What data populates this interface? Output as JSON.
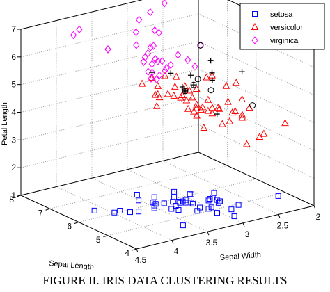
{
  "caption": "FIGURE II.    IRIS DATA CLUSTERING RESULTS",
  "chart_data": {
    "type": "scatter3d",
    "xlabel": "Sepal Width",
    "ylabel": "Sepal Length",
    "zlabel": "Petal Length",
    "x_ticks": [
      "2",
      "2.5",
      "3",
      "3.5",
      "4",
      "4.5"
    ],
    "y_ticks": [
      "4",
      "5",
      "6",
      "7",
      "8"
    ],
    "z_ticks": [
      "1",
      "2",
      "3",
      "4",
      "5",
      "6",
      "7"
    ],
    "xlim": [
      2,
      4.5
    ],
    "ylim": [
      4,
      8
    ],
    "zlim": [
      1,
      7
    ],
    "grid": true,
    "legend_position": "top-right",
    "series": [
      {
        "name": "setosa",
        "marker": "square",
        "color": "#0000ff",
        "points": [
          [
            3.5,
            5.1,
            1.4
          ],
          [
            3.0,
            4.9,
            1.4
          ],
          [
            3.2,
            4.7,
            1.3
          ],
          [
            3.1,
            4.6,
            1.5
          ],
          [
            3.6,
            5.0,
            1.4
          ],
          [
            3.9,
            5.4,
            1.7
          ],
          [
            3.4,
            4.6,
            1.4
          ],
          [
            3.4,
            5.0,
            1.5
          ],
          [
            2.9,
            4.4,
            1.4
          ],
          [
            3.1,
            4.9,
            1.5
          ],
          [
            3.7,
            5.4,
            1.5
          ],
          [
            3.4,
            4.8,
            1.6
          ],
          [
            3.0,
            4.8,
            1.4
          ],
          [
            3.0,
            4.3,
            1.1
          ],
          [
            4.0,
            5.8,
            1.2
          ],
          [
            4.4,
            5.7,
            1.5
          ],
          [
            3.9,
            5.4,
            1.3
          ],
          [
            3.5,
            5.1,
            1.4
          ],
          [
            3.8,
            5.7,
            1.7
          ],
          [
            3.8,
            5.1,
            1.5
          ],
          [
            3.4,
            5.4,
            1.7
          ],
          [
            3.7,
            5.1,
            1.5
          ],
          [
            3.6,
            4.6,
            1.0
          ],
          [
            3.3,
            5.1,
            1.7
          ],
          [
            3.4,
            4.8,
            1.9
          ],
          [
            3.0,
            5.0,
            1.6
          ],
          [
            3.4,
            5.0,
            1.6
          ],
          [
            3.5,
            5.2,
            1.5
          ],
          [
            3.4,
            5.2,
            1.4
          ],
          [
            3.2,
            4.7,
            1.6
          ],
          [
            3.1,
            4.8,
            1.6
          ],
          [
            3.4,
            5.4,
            1.5
          ],
          [
            4.1,
            5.2,
            1.5
          ],
          [
            4.2,
            5.5,
            1.4
          ],
          [
            3.2,
            5.0,
            1.2
          ],
          [
            3.5,
            5.5,
            1.3
          ],
          [
            3.0,
            4.4,
            1.3
          ],
          [
            3.4,
            5.1,
            1.5
          ],
          [
            3.5,
            5.0,
            1.3
          ],
          [
            2.3,
            4.5,
            1.3
          ],
          [
            3.2,
            4.4,
            1.3
          ],
          [
            3.5,
            5.0,
            1.6
          ],
          [
            3.8,
            5.1,
            1.9
          ],
          [
            3.0,
            4.8,
            1.4
          ],
          [
            3.8,
            5.1,
            1.6
          ],
          [
            3.2,
            4.6,
            1.4
          ],
          [
            3.7,
            5.3,
            1.5
          ],
          [
            3.3,
            5.0,
            1.4
          ]
        ]
      },
      {
        "name": "versicolor",
        "marker": "triangle",
        "color": "#ff0000",
        "points": [
          [
            3.2,
            7.0,
            4.7
          ],
          [
            3.2,
            6.4,
            4.5
          ],
          [
            3.1,
            6.9,
            4.9
          ],
          [
            2.3,
            5.5,
            4.0
          ],
          [
            2.8,
            6.5,
            4.6
          ],
          [
            2.8,
            5.7,
            4.5
          ],
          [
            3.3,
            6.3,
            4.7
          ],
          [
            2.4,
            4.9,
            3.3
          ],
          [
            2.9,
            6.6,
            4.6
          ],
          [
            2.7,
            5.2,
            3.9
          ],
          [
            2.0,
            5.0,
            3.5
          ],
          [
            3.0,
            5.9,
            4.2
          ],
          [
            2.2,
            6.0,
            4.0
          ],
          [
            2.9,
            6.1,
            4.7
          ],
          [
            2.9,
            5.6,
            3.6
          ],
          [
            3.1,
            6.7,
            4.4
          ],
          [
            3.0,
            5.6,
            4.5
          ],
          [
            2.7,
            5.8,
            4.1
          ],
          [
            2.2,
            6.2,
            4.5
          ],
          [
            2.5,
            5.6,
            3.9
          ],
          [
            3.2,
            5.9,
            4.8
          ],
          [
            2.8,
            6.1,
            4.0
          ],
          [
            2.5,
            6.3,
            4.9
          ],
          [
            2.8,
            6.1,
            4.7
          ],
          [
            2.9,
            6.4,
            4.3
          ],
          [
            3.0,
            6.6,
            4.4
          ],
          [
            2.8,
            6.8,
            4.8
          ],
          [
            3.0,
            6.7,
            5.0
          ],
          [
            2.9,
            6.0,
            4.5
          ],
          [
            2.6,
            5.7,
            3.5
          ],
          [
            2.4,
            5.5,
            3.8
          ],
          [
            2.4,
            5.5,
            3.7
          ],
          [
            2.7,
            5.8,
            3.9
          ],
          [
            2.7,
            6.0,
            5.1
          ],
          [
            3.0,
            5.4,
            4.5
          ],
          [
            3.4,
            6.0,
            4.5
          ],
          [
            3.1,
            6.7,
            4.7
          ],
          [
            2.3,
            6.3,
            4.4
          ],
          [
            3.0,
            5.6,
            4.1
          ],
          [
            2.5,
            5.5,
            4.0
          ],
          [
            2.6,
            5.5,
            4.4
          ],
          [
            3.0,
            6.1,
            4.6
          ],
          [
            2.6,
            5.8,
            4.0
          ],
          [
            2.3,
            5.0,
            3.3
          ],
          [
            2.7,
            5.6,
            4.2
          ],
          [
            3.0,
            5.7,
            4.2
          ],
          [
            2.9,
            5.7,
            4.2
          ],
          [
            2.9,
            6.2,
            4.3
          ],
          [
            2.5,
            5.1,
            3.0
          ],
          [
            2.8,
            5.7,
            4.1
          ]
        ]
      },
      {
        "name": "virginica",
        "marker": "diamond",
        "color": "#ff00ff",
        "points": [
          [
            3.3,
            6.3,
            6.0
          ],
          [
            3.0,
            7.1,
            5.9
          ],
          [
            2.9,
            6.5,
            5.8
          ],
          [
            3.0,
            7.6,
            6.6
          ],
          [
            2.9,
            7.3,
            6.3
          ],
          [
            3.6,
            7.2,
            6.1
          ],
          [
            3.2,
            6.5,
            5.1
          ],
          [
            2.7,
            6.4,
            5.3
          ],
          [
            3.0,
            6.8,
            5.5
          ],
          [
            3.2,
            6.4,
            5.3
          ],
          [
            3.0,
            6.5,
            5.5
          ],
          [
            3.8,
            7.7,
            6.7
          ],
          [
            2.6,
            7.7,
            6.9
          ],
          [
            3.2,
            6.9,
            5.7
          ],
          [
            2.8,
            7.7,
            6.7
          ],
          [
            3.3,
            6.7,
            5.7
          ],
          [
            3.2,
            7.2,
            6.0
          ],
          [
            3.0,
            7.2,
            5.8
          ],
          [
            2.8,
            7.4,
            6.1
          ],
          [
            3.8,
            7.9,
            6.4
          ],
          [
            2.8,
            6.4,
            5.6
          ],
          [
            3.0,
            7.7,
            6.1
          ],
          [
            3.4,
            6.3,
            5.6
          ],
          [
            3.1,
            6.4,
            5.5
          ],
          [
            3.1,
            6.9,
            5.4
          ],
          [
            3.1,
            6.7,
            5.6
          ],
          [
            3.1,
            6.9,
            5.1
          ],
          [
            3.2,
            6.8,
            5.9
          ],
          [
            3.3,
            6.7,
            5.7
          ],
          [
            3.0,
            6.7,
            5.2
          ],
          [
            3.4,
            6.2,
            5.4
          ],
          [
            2.9,
            7.3,
            6.3
          ],
          [
            2.5,
            6.7,
            5.8
          ],
          [
            3.6,
            7.2,
            6.1
          ],
          [
            3.3,
            6.3,
            6.0
          ]
        ]
      }
    ],
    "unlabeled_markers": [
      {
        "marker": "plus",
        "color": "#000000",
        "points": [
          [
            2.7,
            5.8,
            5.1
          ],
          [
            3.0,
            6.5,
            5.2
          ],
          [
            2.5,
            6.3,
            5.0
          ],
          [
            3.0,
            6.0,
            4.8
          ],
          [
            2.8,
            6.2,
            4.8
          ],
          [
            3.0,
            6.1,
            4.9
          ],
          [
            2.8,
            6.3,
            5.1
          ],
          [
            2.6,
            6.1,
            5.6
          ],
          [
            3.0,
            6.0,
            4.8
          ],
          [
            3.1,
            6.9,
            5.1
          ],
          [
            2.2,
            6.0,
            5.0
          ],
          [
            3.0,
            4.9,
            4.5
          ]
        ]
      },
      {
        "marker": "circle",
        "color": "#000000",
        "points": [
          [
            2.5,
            4.9,
            4.5
          ],
          [
            2.7,
            6.3,
            4.9
          ],
          [
            2.8,
            5.6,
            4.9
          ],
          [
            3.0,
            6.0,
            4.8
          ],
          [
            2.8,
            6.2,
            4.8
          ],
          [
            2.5,
            6.7,
            5.8
          ]
        ]
      }
    ]
  }
}
